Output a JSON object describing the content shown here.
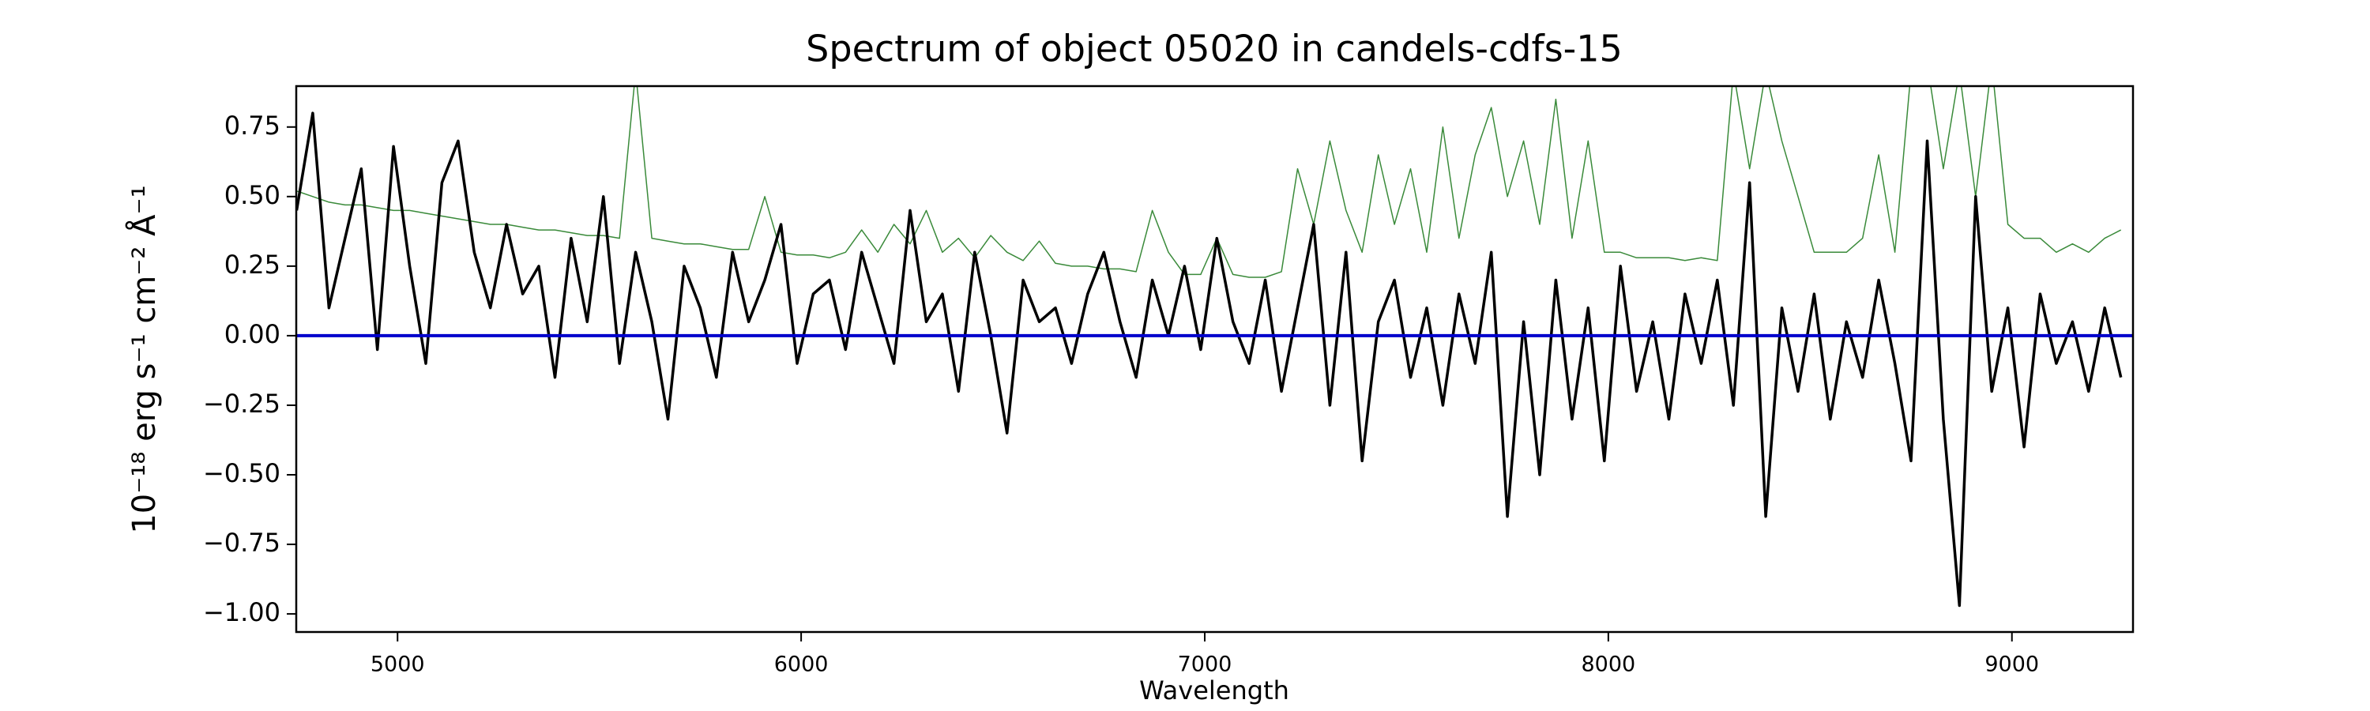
{
  "chart_data": {
    "type": "line",
    "title": "Spectrum of object 05020 in candels-cdfs-15",
    "xlabel": "Wavelength",
    "ylabel": "10⁻¹⁸ erg s⁻¹ cm⁻² Å⁻¹",
    "xlim": [
      4749,
      9300
    ],
    "ylim": [
      -1.065,
      0.897
    ],
    "xticks": [
      5000,
      6000,
      7000,
      8000,
      9000
    ],
    "yticks": [
      {
        "value": -1.0,
        "label": "−1.00"
      },
      {
        "value": -0.75,
        "label": "−0.75"
      },
      {
        "value": -0.5,
        "label": "−0.50"
      },
      {
        "value": -0.25,
        "label": "−0.25"
      },
      {
        "value": 0,
        "label": "0.00"
      },
      {
        "value": 0.25,
        "label": "0.25"
      },
      {
        "value": 0.5,
        "label": "0.50"
      },
      {
        "value": 0.75,
        "label": "0.75"
      }
    ],
    "hline": {
      "value": 0,
      "color": "#0000cc"
    },
    "x": [
      4750,
      4790,
      4830,
      4870,
      4910,
      4950,
      4990,
      5030,
      5070,
      5110,
      5150,
      5190,
      5230,
      5270,
      5310,
      5350,
      5390,
      5430,
      5470,
      5510,
      5550,
      5590,
      5630,
      5670,
      5710,
      5750,
      5790,
      5830,
      5870,
      5910,
      5950,
      5990,
      6030,
      6070,
      6110,
      6150,
      6190,
      6230,
      6270,
      6310,
      6350,
      6390,
      6430,
      6470,
      6510,
      6550,
      6590,
      6630,
      6670,
      6710,
      6750,
      6790,
      6830,
      6870,
      6910,
      6950,
      6990,
      7030,
      7070,
      7110,
      7150,
      7190,
      7230,
      7270,
      7310,
      7350,
      7390,
      7430,
      7470,
      7510,
      7550,
      7590,
      7630,
      7670,
      7710,
      7750,
      7790,
      7830,
      7870,
      7910,
      7950,
      7990,
      8030,
      8070,
      8110,
      8150,
      8190,
      8230,
      8270,
      8310,
      8350,
      8390,
      8430,
      8470,
      8510,
      8550,
      8590,
      8630,
      8670,
      8710,
      8750,
      8790,
      8830,
      8870,
      8910,
      8950,
      8990,
      9030,
      9070,
      9110,
      9150,
      9190,
      9230,
      9270
    ],
    "series": [
      {
        "color": "#3a8a3a",
        "width": 1.5,
        "values": [
          0.52,
          0.5,
          0.48,
          0.47,
          0.47,
          0.46,
          0.45,
          0.45,
          0.44,
          0.43,
          0.42,
          0.41,
          0.4,
          0.4,
          0.39,
          0.38,
          0.38,
          0.37,
          0.36,
          0.36,
          0.35,
          0.95,
          0.35,
          0.34,
          0.33,
          0.33,
          0.32,
          0.31,
          0.31,
          0.5,
          0.3,
          0.29,
          0.29,
          0.28,
          0.3,
          0.38,
          0.3,
          0.4,
          0.33,
          0.45,
          0.3,
          0.35,
          0.28,
          0.36,
          0.3,
          0.27,
          0.34,
          0.26,
          0.25,
          0.25,
          0.24,
          0.24,
          0.23,
          0.45,
          0.3,
          0.22,
          0.22,
          0.35,
          0.22,
          0.21,
          0.21,
          0.23,
          0.6,
          0.4,
          0.7,
          0.45,
          0.3,
          0.65,
          0.4,
          0.6,
          0.3,
          0.75,
          0.35,
          0.65,
          0.82,
          0.5,
          0.7,
          0.4,
          0.85,
          0.35,
          0.7,
          0.3,
          0.3,
          0.28,
          0.28,
          0.28,
          0.27,
          0.28,
          0.27,
          0.95,
          0.6,
          0.95,
          0.7,
          0.5,
          0.3,
          0.3,
          0.3,
          0.35,
          0.65,
          0.3,
          0.95,
          0.98,
          0.6,
          0.95,
          0.5,
          0.98,
          0.4,
          0.35,
          0.35,
          0.3,
          0.33,
          0.3,
          0.35,
          0.38
        ]
      },
      {
        "color": "#000000",
        "width": 3.5,
        "values": [
          0.45,
          0.8,
          0.1,
          0.35,
          0.6,
          -0.05,
          0.68,
          0.25,
          -0.1,
          0.55,
          0.7,
          0.3,
          0.1,
          0.4,
          0.15,
          0.25,
          -0.15,
          0.35,
          0.05,
          0.5,
          -0.1,
          0.3,
          0.05,
          -0.3,
          0.25,
          0.1,
          -0.15,
          0.3,
          0.05,
          0.2,
          0.4,
          -0.1,
          0.15,
          0.2,
          -0.05,
          0.3,
          0.1,
          -0.1,
          0.45,
          0.05,
          0.15,
          -0.2,
          0.3,
          0.0,
          -0.35,
          0.2,
          0.05,
          0.1,
          -0.1,
          0.15,
          0.3,
          0.05,
          -0.15,
          0.2,
          0.0,
          0.25,
          -0.05,
          0.35,
          0.05,
          -0.1,
          0.2,
          -0.2,
          0.1,
          0.4,
          -0.25,
          0.3,
          -0.45,
          0.05,
          0.2,
          -0.15,
          0.1,
          -0.25,
          0.15,
          -0.1,
          0.3,
          -0.65,
          0.05,
          -0.5,
          0.2,
          -0.3,
          0.1,
          -0.45,
          0.25,
          -0.2,
          0.05,
          -0.3,
          0.15,
          -0.1,
          0.2,
          -0.25,
          0.55,
          -0.65,
          0.1,
          -0.2,
          0.15,
          -0.3,
          0.05,
          -0.15,
          0.2,
          -0.1,
          -0.45,
          0.7,
          -0.3,
          -0.97,
          0.5,
          -0.2,
          0.1,
          -0.4,
          0.15,
          -0.1,
          0.05,
          -0.2,
          0.1,
          -0.15
        ]
      }
    ]
  }
}
